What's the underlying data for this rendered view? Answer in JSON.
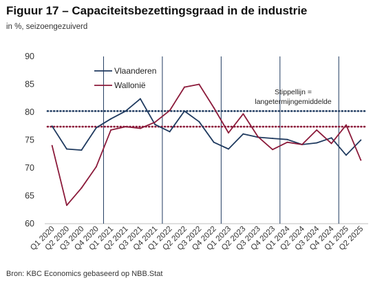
{
  "title": "Figuur 17 – Capaciteitsbezettingsgraad in de industrie",
  "subtitle": "in %, seizoengezuiverd",
  "source": "Bron: KBC Economics gebaseerd op NBB.Stat",
  "chart_data": {
    "type": "line",
    "categories": [
      "Q1 2020",
      "Q2 2020",
      "Q3 2020",
      "Q4 2020",
      "Q1 2021",
      "Q2 2021",
      "Q3 2021",
      "Q4 2021",
      "Q1 2022",
      "Q2 2022",
      "Q3 2022",
      "Q4 2022",
      "Q1 2023",
      "Q2 2023",
      "Q3 2023",
      "Q4 2023",
      "Q1 2024",
      "Q2 2024",
      "Q3 2024",
      "Q4 2024",
      "Q1 2025",
      "Q2 2025"
    ],
    "ylim": [
      60,
      90
    ],
    "yticks": [
      60,
      65,
      70,
      75,
      80,
      85,
      90
    ],
    "grid": false,
    "year_separators_before": [
      "Q1 2021",
      "Q1 2022",
      "Q1 2023",
      "Q1 2024",
      "Q1 2025"
    ],
    "series": [
      {
        "name": "Vlaanderen",
        "color": "#1f3a5f",
        "values": [
          77.5,
          73.4,
          73.2,
          77.2,
          78.8,
          80.2,
          82.4,
          77.8,
          76.5,
          80.2,
          78.3,
          74.6,
          73.4,
          76.1,
          75.5,
          75.3,
          75.1,
          74.2,
          74.5,
          75.4,
          72.3,
          75.0
        ]
      },
      {
        "name": "Wallonië",
        "color": "#8b1a3a",
        "values": [
          74.0,
          63.3,
          66.4,
          70.2,
          76.8,
          77.4,
          77.1,
          78.2,
          80.3,
          84.5,
          85.0,
          80.8,
          76.3,
          79.7,
          75.6,
          73.3,
          74.6,
          74.2,
          76.8,
          74.4,
          77.7,
          71.4
        ]
      }
    ],
    "reference_lines": [
      {
        "series": "Vlaanderen",
        "value": 80.2,
        "style": "dotted",
        "color": "#1f3a5f"
      },
      {
        "series": "Wallonië",
        "value": 77.4,
        "style": "dotted",
        "color": "#8b1a3a"
      }
    ],
    "annotation": [
      "Stippellijn =",
      "langetermijngemiddelde"
    ],
    "legend_position": "top-left"
  }
}
